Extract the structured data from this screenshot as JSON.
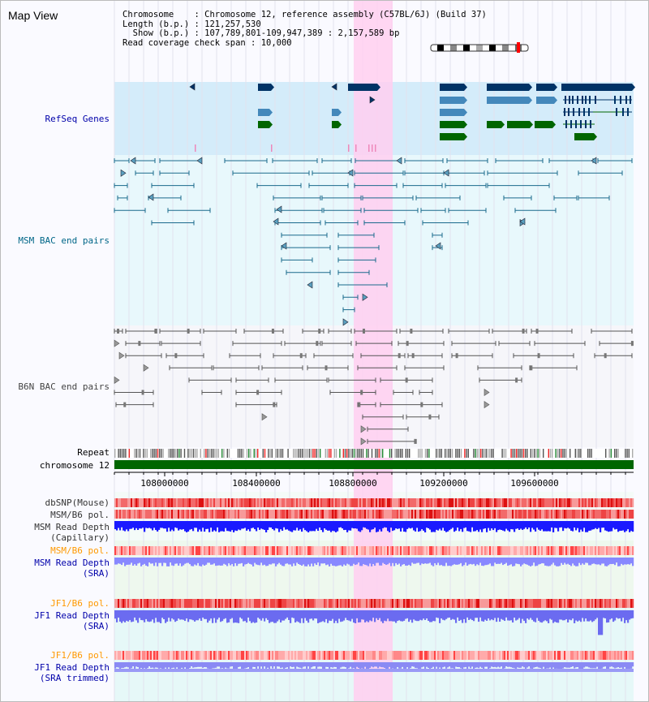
{
  "app": {
    "title": "Map View"
  },
  "info": {
    "chromosome_label": "Chromosome",
    "chromosome_value": "Chromosome 12, reference assembly (C57BL/6J) (Build 37)",
    "length_label": "Length (b.p.)",
    "length_value": "121,257,530",
    "show_label": "Show (b.p.)",
    "show_value": "107,789,801-109,947,389 : 2,157,589 bp",
    "coverage_label": "Read coverage check span",
    "coverage_value": "10,000"
  },
  "tracks": {
    "refseq": "RefSeq Genes",
    "msm_bac": "MSM BAC end pairs",
    "b6n_bac": "B6N BAC end pairs",
    "repeat": "Repeat",
    "chromosome": "chromosome 12",
    "dbsnp": "dbSNP(Mouse)",
    "msm_b6_pol_1": "MSM/B6 pol.",
    "msm_read_depth_cap_1": "MSM Read Depth",
    "msm_read_depth_cap_2": "(Capillary)",
    "msm_b6_pol_2": "MSM/B6 pol.",
    "msm_read_depth_sra_1": "MSM Read Depth",
    "msm_read_depth_sra_2": "(SRA)",
    "jf1_b6_pol_1": "JF1/B6 pol.",
    "jf1_read_depth_sra_1": "JF1 Read Depth",
    "jf1_read_depth_sra_2": "(SRA)",
    "jf1_b6_pol_2": "JF1/B6 pol.",
    "jf1_read_depth_trim_1": "JF1 Read Depth",
    "jf1_read_depth_trim_2": "(SRA trimmed)"
  },
  "axis": {
    "ticks": [
      "108000000",
      "108400000",
      "108800000",
      "109200000",
      "109600000"
    ]
  },
  "colors": {
    "refseq_label": "#0000aa",
    "msm_label": "#006688",
    "b6n_label": "#444444",
    "orange_label": "#ff9900",
    "blue_label": "#0000aa",
    "highlight": "#ffcff0",
    "gene_dark": "#003366",
    "gene_mid": "#4488bb",
    "gene_green": "#006600",
    "chromosome_bar": "#006600"
  }
}
